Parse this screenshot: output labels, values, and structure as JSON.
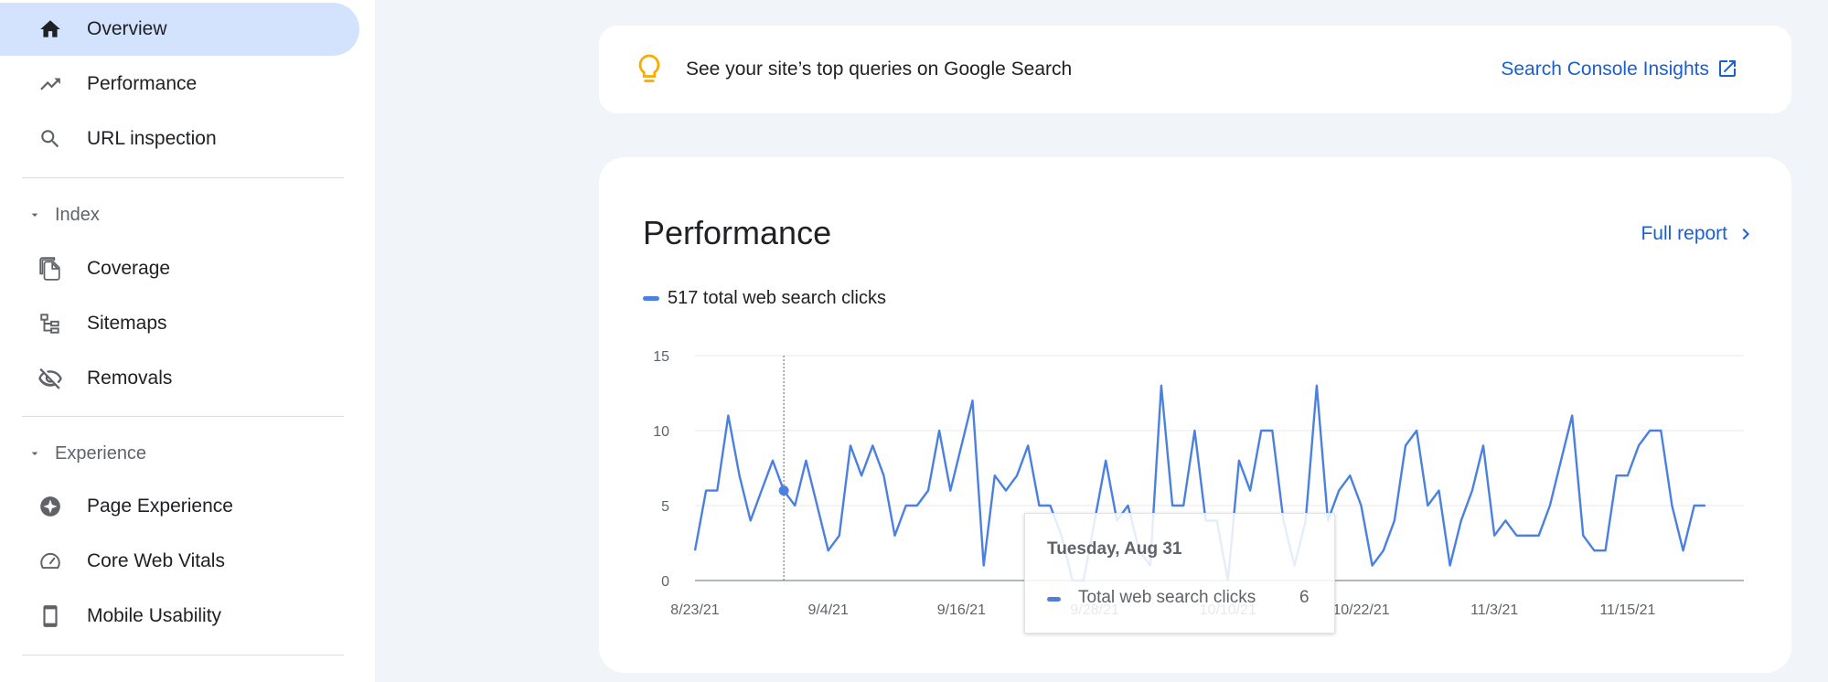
{
  "sidebar": {
    "top_items": [
      {
        "label": "Overview",
        "icon": "home-icon",
        "active": true
      },
      {
        "label": "Performance",
        "icon": "trending-up-icon",
        "active": false
      },
      {
        "label": "URL inspection",
        "icon": "search-icon",
        "active": false
      }
    ],
    "sections": [
      {
        "title": "Index",
        "items": [
          {
            "label": "Coverage",
            "icon": "file-copy-icon"
          },
          {
            "label": "Sitemaps",
            "icon": "sitemap-icon"
          },
          {
            "label": "Removals",
            "icon": "eye-off-icon"
          }
        ]
      },
      {
        "title": "Experience",
        "items": [
          {
            "label": "Page Experience",
            "icon": "page-experience-icon"
          },
          {
            "label": "Core Web Vitals",
            "icon": "speedometer-icon"
          },
          {
            "label": "Mobile Usability",
            "icon": "smartphone-icon"
          }
        ]
      }
    ]
  },
  "insights": {
    "text": "See your site’s top queries on Google Search",
    "link_label": "Search Console Insights",
    "icon": "lightbulb-icon"
  },
  "performance": {
    "title": "Performance",
    "full_report_label": "Full report",
    "legend_label": "517 total web search clicks",
    "tooltip": {
      "date": "Tuesday, Aug 31",
      "series_label": "Total web search clicks",
      "value": "6"
    }
  },
  "colors": {
    "accent": "#1a5fd0",
    "series": "#4a80e0",
    "active_nav": "#d3e3fd",
    "main_bg": "#f1f4f9",
    "bulb": "#f9ab00"
  },
  "chart_data": {
    "type": "line",
    "title": "",
    "xlabel": "",
    "ylabel": "",
    "ylim": [
      0,
      15
    ],
    "y_ticks": [
      0,
      5,
      10,
      15
    ],
    "x_tick_labels": [
      "8/23/21",
      "9/4/21",
      "9/16/21",
      "9/28/21",
      "10/10/21",
      "10/22/21",
      "11/3/21",
      "11/15/21"
    ],
    "x_start": "8/23/21",
    "x_end": "11/23/21",
    "grid": true,
    "highlight_date": "8/31/21",
    "series": [
      {
        "name": "Total web search clicks",
        "values": [
          2,
          6,
          6,
          11,
          7,
          4,
          6,
          8,
          6,
          5,
          8,
          5,
          2,
          3,
          9,
          7,
          9,
          7,
          3,
          5,
          5,
          6,
          10,
          6,
          9,
          12,
          1,
          7,
          6,
          7,
          9,
          5,
          5,
          3,
          0,
          0,
          4,
          8,
          4,
          5,
          2,
          1,
          13,
          5,
          5,
          10,
          4,
          4,
          0,
          8,
          6,
          10,
          10,
          4,
          1,
          4,
          13,
          4,
          6,
          7,
          5,
          1,
          2,
          4,
          9,
          10,
          5,
          6,
          1,
          4,
          6,
          9,
          3,
          4,
          3,
          3,
          3,
          5,
          8,
          11,
          3,
          2,
          2,
          7,
          7,
          9,
          10,
          10,
          5,
          2,
          5,
          5
        ]
      }
    ]
  }
}
